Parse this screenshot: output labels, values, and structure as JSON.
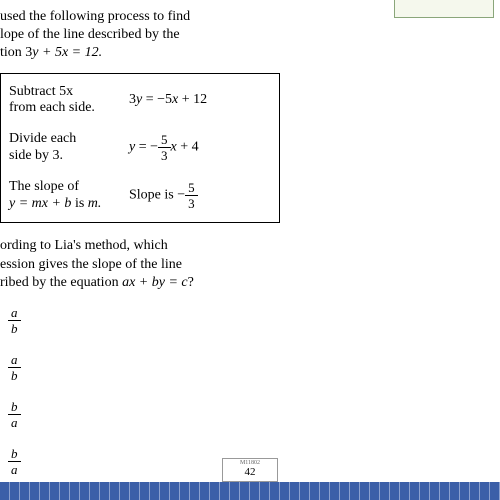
{
  "intro": {
    "line1": "used the following process to find",
    "line2": "lope of the line described by the",
    "line3_pre": "tion  3",
    "line3_eq": "y + 5x = 12."
  },
  "steps": {
    "s1": {
      "t1": "Subtract 5x",
      "t2": "from each side.",
      "math_pre": "3",
      "math_y": "y",
      "math_post": " = −5",
      "math_x": "x",
      "math_end": " + 12"
    },
    "s2": {
      "t1": "Divide each",
      "t2": "side by 3.",
      "math_y": "y",
      "math_eq": " = −",
      "num": "5",
      "den": "3",
      "math_x": "x",
      "math_end": " + 4"
    },
    "s3": {
      "t1": "The slope of",
      "t2a": "y = mx + b",
      "t2b": " is ",
      "t2c": "m.",
      "label": "Slope is −",
      "num": "5",
      "den": "3"
    }
  },
  "question": {
    "l1": "ording to Lia's method, which",
    "l2": "ession gives the slope of the line",
    "l3_pre": "ribed by the equation ",
    "l3_eq": "ax + by = c",
    "l3_post": "?"
  },
  "choices": {
    "c1": {
      "num": "a",
      "den": "b"
    },
    "c2": {
      "num": "a",
      "den": "b"
    },
    "c3": {
      "num": "b",
      "den": "a"
    },
    "c4": {
      "num": "b",
      "den": "a"
    }
  },
  "footer": {
    "code": "M11802",
    "page": "42"
  }
}
